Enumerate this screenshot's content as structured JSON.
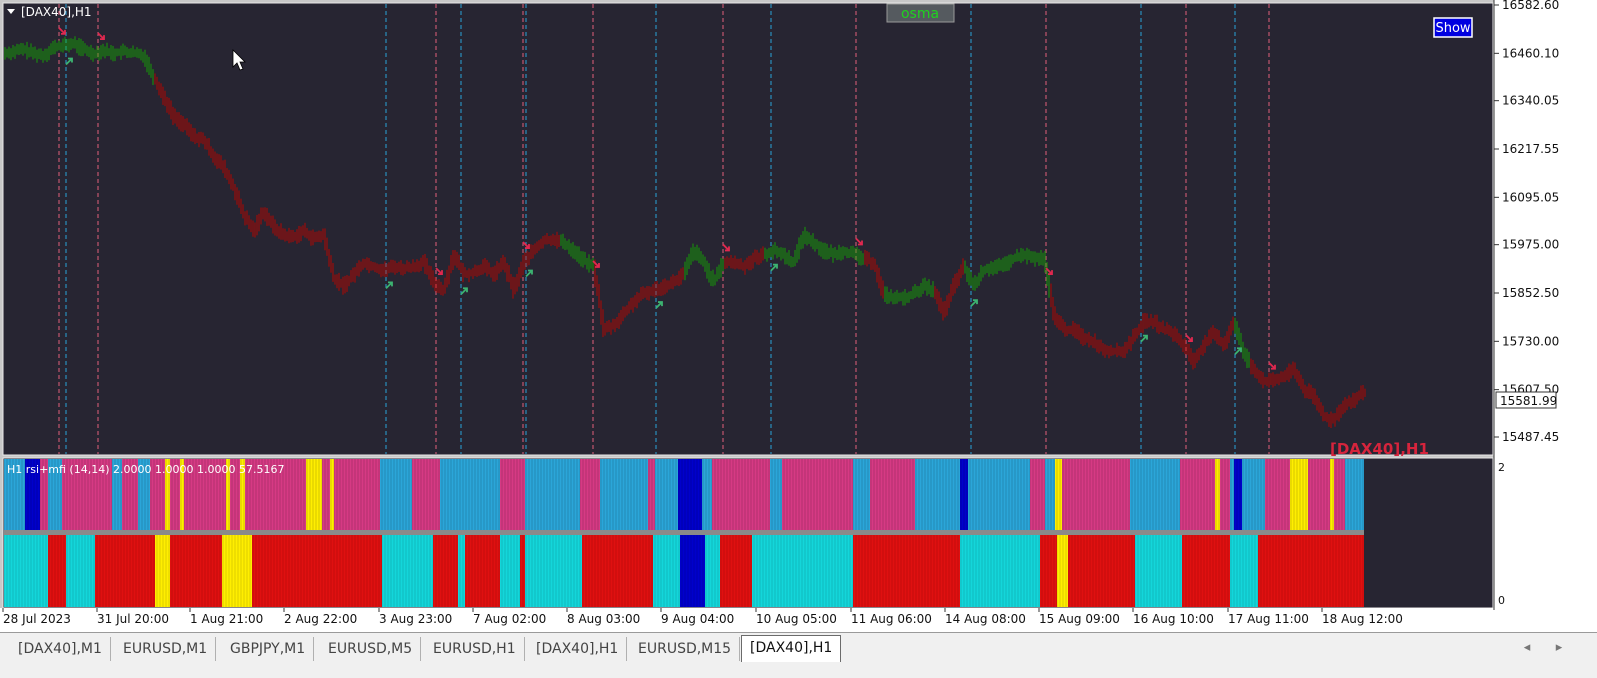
{
  "window": {
    "title": "[DAX40],H1",
    "indicator_button": "osma",
    "show_button": "Show",
    "watermark": "[DAX40],H1"
  },
  "colors": {
    "background": "#272532",
    "bull": "#1a7a12",
    "bear": "#8b0f0f",
    "up_arrow": "#3cb371",
    "down_arrow": "#e0284f",
    "vline_blue": "#2aa3d8",
    "vline_pink": "#e0607a",
    "hist_pink": "#d63a84",
    "hist_sky": "#2ba6d9",
    "hist_blue": "#0000cc",
    "hist_yellow": "#ffee00",
    "hist_red": "#e01010",
    "hist_cyan": "#14d6da"
  },
  "price_axis": {
    "ticks": [
      "16582.60",
      "16460.10",
      "16340.05",
      "16217.55",
      "16095.05",
      "15975.00",
      "15852.50",
      "15730.00",
      "15607.50",
      "15487.45"
    ],
    "current_price": "15581.99"
  },
  "time_axis": {
    "labels": [
      "28 Jul 2023",
      "31 Jul 20:00",
      "1 Aug 21:00",
      "2 Aug 22:00",
      "3 Aug 23:00",
      "7 Aug 02:00",
      "8 Aug 03:00",
      "9 Aug 04:00",
      "10 Aug 05:00",
      "11 Aug 06:00",
      "14 Aug 08:00",
      "15 Aug 09:00",
      "16 Aug 10:00",
      "17 Aug 11:00",
      "18 Aug 12:00"
    ]
  },
  "indicator": {
    "label": "H1 rsi+mfi (14,14) 2.0000 1.0000 1.0000 57.5167",
    "axis_top": "2",
    "axis_bottom": "0"
  },
  "chart_data": {
    "type": "line",
    "title": "[DAX40],H1",
    "series": [
      {
        "name": "",
        "x": [
          0,
          10,
          20,
          30,
          40,
          50,
          60,
          70,
          80,
          90,
          100,
          110,
          120,
          130,
          140,
          150,
          160,
          170,
          180,
          190,
          200,
          210,
          220,
          230,
          240,
          250,
          260,
          270,
          280,
          290,
          300,
          310,
          320,
          330,
          340,
          350,
          360,
          370,
          380,
          390,
          400,
          410,
          420,
          430,
          440,
          450,
          460,
          470,
          480,
          490,
          500,
          510,
          520,
          530,
          540,
          550,
          560,
          570,
          580,
          590,
          600,
          610,
          620,
          630,
          640,
          650,
          660,
          670,
          680,
          690,
          700,
          710,
          720,
          730,
          740,
          750,
          760,
          770,
          780,
          790,
          800,
          810,
          820,
          830,
          840,
          850,
          860,
          870,
          880,
          890,
          900,
          910,
          920,
          930,
          940,
          950,
          960,
          970,
          980,
          990,
          1000,
          1010,
          1020,
          1030,
          1040,
          1050,
          1060,
          1070,
          1080,
          1090,
          1100,
          1110,
          1120,
          1130,
          1140,
          1150,
          1160,
          1170,
          1180,
          1190,
          1200,
          1210,
          1220,
          1230,
          1240,
          1250,
          1260,
          1270,
          1280,
          1290,
          1300,
          1310,
          1320,
          1330,
          1340,
          1350,
          1360
        ],
        "values": [
          16460,
          16465,
          16470,
          16460,
          16455,
          16475,
          16480,
          16485,
          16470,
          16460,
          16468,
          16460,
          16465,
          16460,
          16455,
          16400,
          16350,
          16300,
          16280,
          16250,
          16240,
          16200,
          16170,
          16120,
          16050,
          16010,
          16060,
          16020,
          16000,
          15995,
          16010,
          15990,
          16000,
          15890,
          15870,
          15900,
          15930,
          15920,
          15910,
          15920,
          15915,
          15920,
          15930,
          15880,
          15860,
          15950,
          15900,
          15905,
          15920,
          15900,
          15930,
          15860,
          15930,
          15960,
          15985,
          15990,
          15980,
          15960,
          15935,
          15920,
          15760,
          15770,
          15800,
          15830,
          15850,
          15860,
          15870,
          15880,
          15900,
          15960,
          15930,
          15880,
          15930,
          15930,
          15920,
          15940,
          15950,
          15960,
          15950,
          15930,
          16000,
          15980,
          15960,
          15950,
          15960,
          15950,
          15940,
          15930,
          15850,
          15840,
          15840,
          15850,
          15870,
          15860,
          15800,
          15870,
          15920,
          15870,
          15910,
          15920,
          15920,
          15940,
          15950,
          15940,
          15940,
          15800,
          15760,
          15760,
          15740,
          15730,
          15710,
          15705,
          15705,
          15740,
          15780,
          15780,
          15760,
          15750,
          15720,
          15680,
          15720,
          15750,
          15720,
          15780,
          15700,
          15660,
          15630,
          15630,
          15640,
          15660,
          15610,
          15590,
          15540,
          15530,
          15570,
          15580,
          15600
        ]
      }
    ],
    "ylim": [
      15440,
      16590
    ],
    "signals_up_at": [
      65,
      385,
      460,
      525,
      655,
      770,
      970,
      1140,
      1234
    ],
    "signals_down_at": [
      58,
      97,
      435,
      522,
      592,
      722,
      855,
      1045,
      1185,
      1268
    ]
  },
  "tabs": [
    {
      "label": "[DAX40],M1",
      "active": false
    },
    {
      "label": "EURUSD,M1",
      "active": false
    },
    {
      "label": "GBPJPY,M1",
      "active": false
    },
    {
      "label": "EURUSD,M5",
      "active": false
    },
    {
      "label": "EURUSD,H1",
      "active": false
    },
    {
      "label": "[DAX40],H1",
      "active": false
    },
    {
      "label": "EURUSD,M15",
      "active": false
    },
    {
      "label": "[DAX40],H1",
      "active": true
    }
  ],
  "scroll": {
    "left": "◂",
    "right": "▸"
  }
}
